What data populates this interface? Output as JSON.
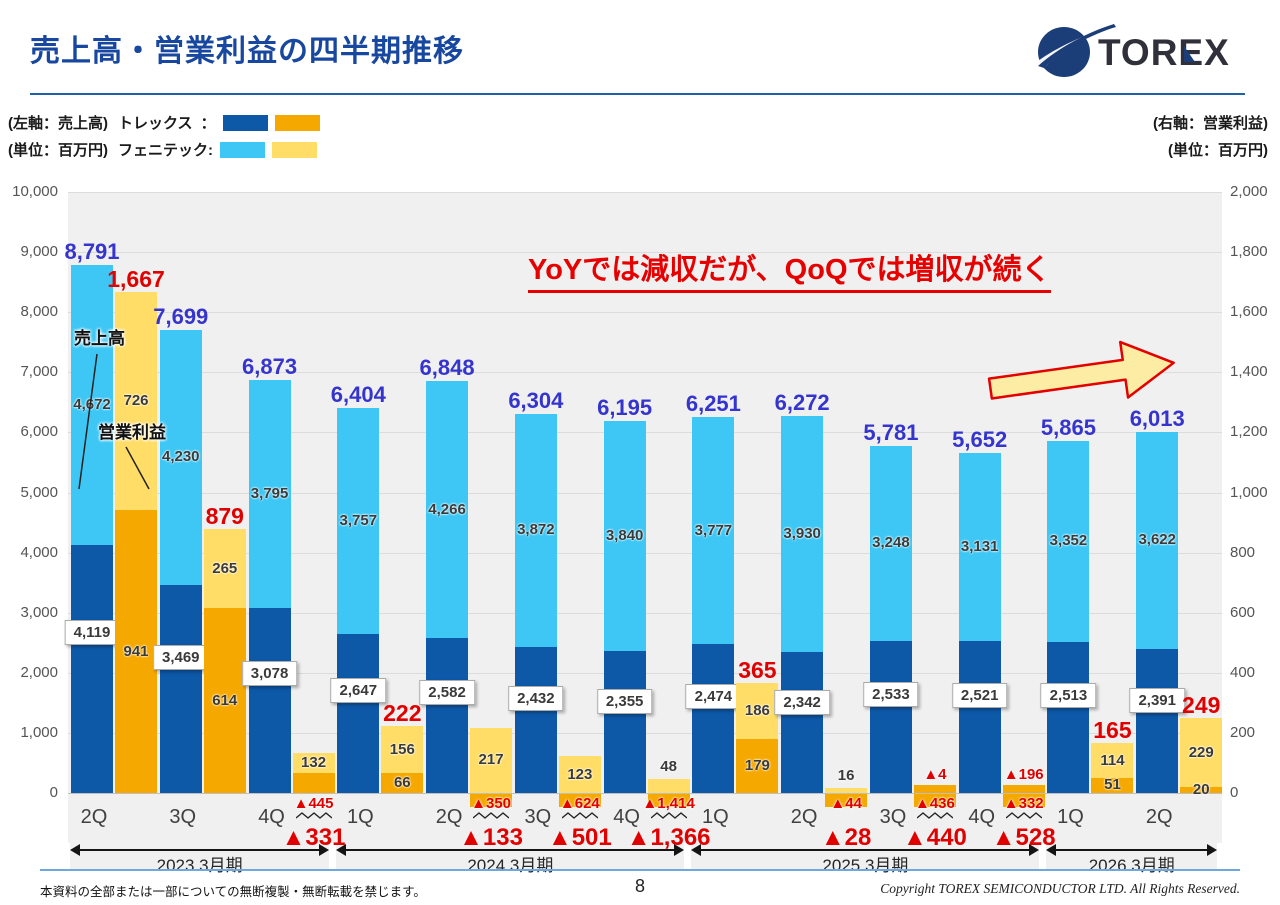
{
  "header": {
    "title": "売上高・営業利益の四半期推移",
    "logo_text": "TOREX"
  },
  "legend": {
    "left_axis_label": "(左軸：売上高)",
    "left_unit_label": "(単位：百万円)",
    "torex_label": "トレックス",
    "torex_colon": "：",
    "phenitec_label": "フェニテック:",
    "right_axis_label": "(右軸：営業利益)",
    "right_unit_label": "(単位：百万円)"
  },
  "annotation": {
    "headline": "YoYでは減収だが、QoQでは増収が続く",
    "sales_callout": "売上高",
    "profit_callout": "営業利益"
  },
  "colors": {
    "torex_sales": "#0D59A8",
    "phenitec_sales": "#3EC7F4",
    "torex_profit": "#F5A900",
    "phenitec_profit": "#FFDD66",
    "sales_total_text": "#3535CE",
    "profit_total_text": "#E10000",
    "title_text": "#17479E"
  },
  "axes": {
    "left_ticks": [
      "10,000",
      "9,000",
      "8,000",
      "7,000",
      "6,000",
      "5,000",
      "4,000",
      "3,000",
      "2,000",
      "1,000",
      "0"
    ],
    "right_ticks": [
      "2,000",
      "1,800",
      "1,600",
      "1,400",
      "1,200",
      "1,000",
      "800",
      "600",
      "400",
      "200",
      "0"
    ],
    "left_max": 10000,
    "right_max": 2000
  },
  "chart_data": {
    "type": "bar",
    "title": "売上高・営業利益の四半期推移",
    "categories": [
      "2Q",
      "3Q",
      "4Q",
      "1Q",
      "2Q",
      "3Q",
      "4Q",
      "1Q",
      "2Q",
      "3Q",
      "4Q",
      "1Q",
      "2Q"
    ],
    "fiscal_groups": [
      {
        "label": "2023.3月期",
        "span": 3
      },
      {
        "label": "2024.3月期",
        "span": 4
      },
      {
        "label": "2025.3月期",
        "span": 4
      },
      {
        "label": "2026.3月期",
        "span": 2
      }
    ],
    "unit": "百万円",
    "left_axis": "売上高",
    "right_axis": "営業利益",
    "ylim_left": [
      0,
      10000
    ],
    "ylim_right": [
      0,
      2000
    ],
    "series": [
      {
        "name": "トレックス売上高",
        "axis": "left",
        "values": [
          4119,
          3469,
          3078,
          2647,
          2582,
          2432,
          2355,
          2474,
          2342,
          2533,
          2521,
          2513,
          2391
        ]
      },
      {
        "name": "フェニテック売上高",
        "axis": "left",
        "values": [
          4672,
          4230,
          3795,
          3757,
          4266,
          3872,
          3840,
          3777,
          3930,
          3248,
          3131,
          3352,
          3622
        ]
      },
      {
        "name": "売上高合計",
        "axis": "left",
        "values": [
          8791,
          7699,
          6873,
          6404,
          6848,
          6304,
          6195,
          6251,
          6272,
          5781,
          5652,
          5865,
          6013
        ]
      },
      {
        "name": "トレックス営業利益",
        "axis": "right",
        "values": [
          941,
          614,
          -445,
          66,
          -350,
          -624,
          -1414,
          179,
          -44,
          -436,
          -332,
          51,
          20
        ]
      },
      {
        "name": "フェニテック営業利益",
        "axis": "right",
        "values": [
          726,
          265,
          132,
          156,
          217,
          123,
          48,
          186,
          16,
          -4,
          -196,
          114,
          229
        ]
      },
      {
        "name": "営業利益合計",
        "axis": "right",
        "values": [
          1667,
          879,
          -331,
          222,
          -133,
          -501,
          -1366,
          365,
          -28,
          -440,
          -528,
          165,
          249
        ]
      }
    ]
  },
  "quarters": [
    {
      "q": "2Q",
      "st": "8,791",
      "ts": "4,119",
      "ps": "4,672",
      "tsv": 4119,
      "psv": 4672,
      "pt": "1,667",
      "tpl": "941",
      "ppl": "726",
      "bo": 941,
      "by": 726,
      "ext": false,
      "na": null,
      "nb": null,
      "sq": false,
      "nt": null
    },
    {
      "q": "3Q",
      "st": "7,699",
      "ts": "3,469",
      "ps": "4,230",
      "tsv": 3469,
      "psv": 4230,
      "pt": "879",
      "tpl": "614",
      "ppl": "265",
      "bo": 614,
      "by": 265,
      "ext": false,
      "na": null,
      "nb": null,
      "sq": false,
      "nt": null
    },
    {
      "q": "4Q",
      "st": "6,873",
      "ts": "3,078",
      "ps": "3,795",
      "tsv": 3078,
      "psv": 3795,
      "pt": null,
      "tpl": null,
      "ppl": "132",
      "bo": 66,
      "by": 66,
      "ext": false,
      "na": null,
      "nb": "▲445",
      "sq": true,
      "nt": "▲331"
    },
    {
      "q": "1Q",
      "st": "6,404",
      "ts": "2,647",
      "ps": "3,757",
      "tsv": 2647,
      "psv": 3757,
      "pt": "222",
      "tpl": "66",
      "ppl": "156",
      "bo": 66,
      "by": 156,
      "ext": false,
      "na": null,
      "nb": null,
      "sq": false,
      "nt": null
    },
    {
      "q": "2Q",
      "st": "6,848",
      "ts": "2,582",
      "ps": "4,266",
      "tsv": 2582,
      "psv": 4266,
      "pt": null,
      "tpl": null,
      "ppl": "217",
      "bo": 0,
      "by": 217,
      "ext": true,
      "na": null,
      "nb": "▲350",
      "sq": true,
      "nt": "▲133"
    },
    {
      "q": "3Q",
      "st": "6,304",
      "ts": "2,432",
      "ps": "3,872",
      "tsv": 2432,
      "psv": 3872,
      "pt": null,
      "tpl": null,
      "ppl": "123",
      "bo": 0,
      "by": 123,
      "ext": true,
      "na": null,
      "nb": "▲624",
      "sq": true,
      "nt": "▲501"
    },
    {
      "q": "4Q",
      "st": "6,195",
      "ts": "2,355",
      "ps": "3,840",
      "tsv": 2355,
      "psv": 3840,
      "pt": null,
      "tpl": null,
      "ppl": "48",
      "bo": 0,
      "by": 48,
      "ext": true,
      "na": null,
      "nb": "▲1,414",
      "sq": true,
      "nt": "▲1,366"
    },
    {
      "q": "1Q",
      "st": "6,251",
      "ts": "2,474",
      "ps": "3,777",
      "tsv": 2474,
      "psv": 3777,
      "pt": "365",
      "tpl": "179",
      "ppl": "186",
      "bo": 179,
      "by": 186,
      "ext": false,
      "na": null,
      "nb": null,
      "sq": false,
      "nt": null
    },
    {
      "q": "2Q",
      "st": "6,272",
      "ts": "2,342",
      "ps": "3,930",
      "tsv": 2342,
      "psv": 3930,
      "pt": null,
      "tpl": null,
      "ppl": "16",
      "bo": 0,
      "by": 16,
      "ext": true,
      "na": null,
      "nb": "▲44",
      "sq": false,
      "nt": "▲28"
    },
    {
      "q": "3Q",
      "st": "5,781",
      "ts": "2,533",
      "ps": "3,248",
      "tsv": 2533,
      "psv": 3248,
      "pt": null,
      "tpl": null,
      "ppl": null,
      "bo": 25,
      "by": 0,
      "ext": true,
      "na": "▲4",
      "nb": "▲436",
      "sq": true,
      "nt": "▲440"
    },
    {
      "q": "4Q",
      "st": "5,652",
      "ts": "2,521",
      "ps": "3,131",
      "tsv": 2521,
      "psv": 3131,
      "pt": null,
      "tpl": null,
      "ppl": null,
      "bo": 25,
      "by": 0,
      "ext": true,
      "na": "▲196",
      "nb": "▲332",
      "sq": true,
      "nt": "▲528"
    },
    {
      "q": "1Q",
      "st": "5,865",
      "ts": "2,513",
      "ps": "3,352",
      "tsv": 2513,
      "psv": 3352,
      "pt": "165",
      "tpl": "51",
      "ppl": "114",
      "bo": 51,
      "by": 114,
      "ext": false,
      "na": null,
      "nb": null,
      "sq": false,
      "nt": null
    },
    {
      "q": "2Q",
      "st": "6,013",
      "ts": "2,391",
      "ps": "3,622",
      "tsv": 2391,
      "psv": 3622,
      "pt": "249",
      "tpl": "20",
      "ppl": "229",
      "bo": 20,
      "by": 229,
      "ext": false,
      "na": null,
      "nb": null,
      "sq": false,
      "nt": null
    }
  ],
  "footer": {
    "disclaimer": "本資料の全部または一部についての無断複製・無断転載を禁じます。",
    "page": "8",
    "copyright": "Copyright TOREX SEMICONDUCTOR LTD.  All Rights Reserved."
  }
}
